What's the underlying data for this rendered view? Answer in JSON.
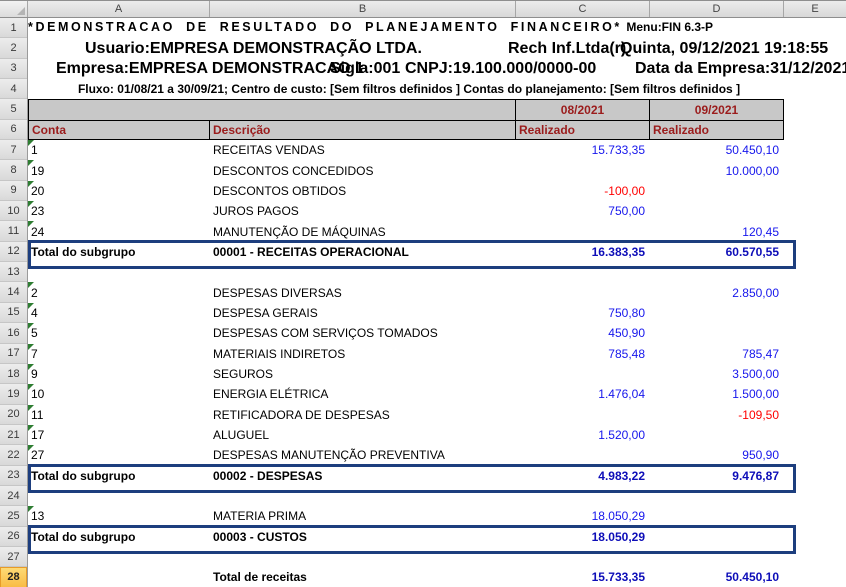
{
  "report_header": {
    "title": "*DEMONSTRACAO DE RESULTADO DO PLANEJAMENTO FINANCEIRO*",
    "menu": "Menu:FIN 6.3-P",
    "usuario": "Usuario:EMPRESA DEMONSTRAÇÃO LTDA.",
    "fornecedor": "Rech Inf.Ltda(r)",
    "datetime": "Quinta, 09/12/2021 19:18:55",
    "empresa": "Empresa:EMPRESA DEMONSTRACAO 1",
    "sigla": "Sigla:001",
    "cnpj": "CNPJ:19.100.000/0000-00",
    "data_empresa": "Data da Empresa:31/12/2021",
    "filtros": "Fluxo: 01/08/21 a 30/09/21; Centro de custo: [Sem filtros definidos ] Contas do planejamento: [Sem filtros definidos ]"
  },
  "sheet": {
    "column_headers": [
      "A",
      "B",
      "C",
      "D",
      "E"
    ],
    "row_count": 28,
    "selected_row": 28,
    "periods": [
      "08/2021",
      "09/2021"
    ],
    "field_headers": {
      "conta": "Conta",
      "descricao": "Descrição",
      "realizado": "Realizado"
    },
    "rows": [
      {
        "n": 7,
        "type": "data",
        "conta": "1",
        "desc": "RECEITAS VENDAS",
        "v08": "15.733,35",
        "v09": "50.450,10"
      },
      {
        "n": 8,
        "type": "data",
        "conta": "19",
        "desc": "DESCONTOS CONCEDIDOS",
        "v08": "",
        "v09": "10.000,00"
      },
      {
        "n": 9,
        "type": "data",
        "conta": "20",
        "desc": "DESCONTOS OBTIDOS",
        "v08": "-100,00",
        "v09": ""
      },
      {
        "n": 10,
        "type": "data",
        "conta": "23",
        "desc": "JUROS PAGOS",
        "v08": "750,00",
        "v09": ""
      },
      {
        "n": 11,
        "type": "data",
        "conta": "24",
        "desc": "MANUTENÇÃO DE MÁQUINAS",
        "v08": "",
        "v09": "120,45"
      },
      {
        "n": 12,
        "type": "total",
        "conta": "Total do subgrupo",
        "desc": "00001 - RECEITAS OPERACIONAL",
        "v08": "16.383,35",
        "v09": "60.570,55"
      },
      {
        "n": 13,
        "type": "blank",
        "conta": "",
        "desc": "",
        "v08": "",
        "v09": ""
      },
      {
        "n": 14,
        "type": "data",
        "conta": "2",
        "desc": "DESPESAS DIVERSAS",
        "v08": "",
        "v09": "2.850,00"
      },
      {
        "n": 15,
        "type": "data",
        "conta": "4",
        "desc": "DESPESA GERAIS",
        "v08": "750,80",
        "v09": ""
      },
      {
        "n": 16,
        "type": "data",
        "conta": "5",
        "desc": "DESPESAS COM SERVIÇOS TOMADOS",
        "v08": "450,90",
        "v09": ""
      },
      {
        "n": 17,
        "type": "data",
        "conta": "7",
        "desc": "MATERIAIS INDIRETOS",
        "v08": "785,48",
        "v09": "785,47"
      },
      {
        "n": 18,
        "type": "data",
        "conta": "9",
        "desc": "SEGUROS",
        "v08": "",
        "v09": "3.500,00"
      },
      {
        "n": 19,
        "type": "data",
        "conta": "10",
        "desc": "ENERGIA ELÉTRICA",
        "v08": "1.476,04",
        "v09": "1.500,00"
      },
      {
        "n": 20,
        "type": "data",
        "conta": "11",
        "desc": "RETIFICADORA DE DESPESAS",
        "v08": "",
        "v09": "-109,50"
      },
      {
        "n": 21,
        "type": "data",
        "conta": "17",
        "desc": "ALUGUEL",
        "v08": "1.520,00",
        "v09": ""
      },
      {
        "n": 22,
        "type": "data",
        "conta": "27",
        "desc": "DESPESAS MANUTENÇÃO PREVENTIVA",
        "v08": "",
        "v09": "950,90"
      },
      {
        "n": 23,
        "type": "total",
        "conta": "Total do subgrupo",
        "desc": "00002 - DESPESAS",
        "v08": "4.983,22",
        "v09": "9.476,87"
      },
      {
        "n": 24,
        "type": "blank",
        "conta": "",
        "desc": "",
        "v08": "",
        "v09": ""
      },
      {
        "n": 25,
        "type": "data",
        "conta": "13",
        "desc": "MATERIA PRIMA",
        "v08": "18.050,29",
        "v09": ""
      },
      {
        "n": 26,
        "type": "total",
        "conta": "Total do subgrupo",
        "desc": "00003 - CUSTOS",
        "v08": "18.050,29",
        "v09": ""
      },
      {
        "n": 27,
        "type": "blank",
        "conta": "",
        "desc": "",
        "v08": "",
        "v09": ""
      },
      {
        "n": 28,
        "type": "grand",
        "conta": "",
        "desc": "Total de receitas",
        "v08": "15.733,35",
        "v09": "50.450,10"
      }
    ]
  },
  "colors": {
    "number_blue": "#1616EC",
    "total_number_blue": "#0D0DB8",
    "negative_red": "#FF0000",
    "header_text_red": "#9B1C1C",
    "header_band_gray": "#C8C8C8",
    "total_box_border": "#1D3E7E",
    "selected_row_header": "#FBCC51",
    "flag_green": "#2E7D32"
  }
}
